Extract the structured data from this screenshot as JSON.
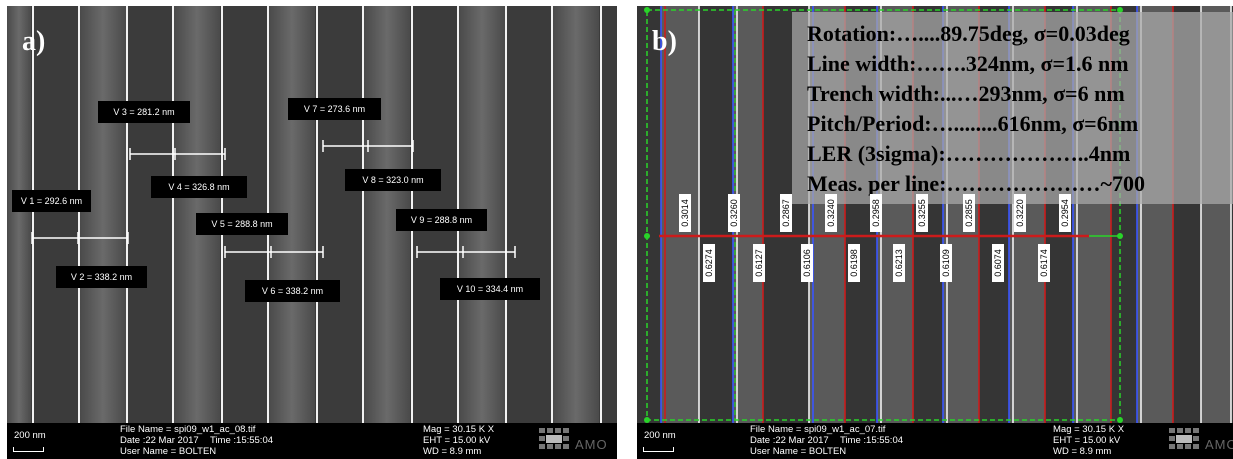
{
  "panel_a": {
    "label": "a)",
    "measurements": [
      "V 1 = 292.6 nm",
      "V 2 = 338.2 nm",
      "V 3 = 281.2 nm",
      "V 4 = 326.8 nm",
      "V 5 = 288.8 nm",
      "V 6 = 338.2 nm",
      "V 7 = 273.6 nm",
      "V 8 = 323.0 nm",
      "V 9 = 288.8 nm",
      "V 10 = 334.4 nm"
    ],
    "databar": {
      "scale": "200 nm",
      "file_name": "File Name = spi09_w1_ac_08.tif",
      "date": "Date :22 Mar 2017",
      "time": "Time :15:55:04",
      "user": "User Name = BOLTEN",
      "mag": "Mag =  30.15 K X",
      "eht": "EHT = 15.00 kV",
      "wd": "WD =  8.9 mm",
      "logo": "AMO"
    }
  },
  "panel_b": {
    "label": "b)",
    "stats": [
      "Rotation:…....89.75deg, σ=0.03deg",
      "Line width:…….324nm, σ=1.6 nm",
      "Trench width:...…293nm, σ=6 nm",
      "Pitch/Period:…........616nm, σ=6nm",
      "LER (3sigma):………………..4nm",
      "Meas. per line:…………………~700"
    ],
    "upper_values": [
      "0.3014",
      "0.3260",
      "0.2867",
      "0.3240",
      "0.2958",
      "0.3255",
      "0.2855",
      "0.3220",
      "0.2954"
    ],
    "lower_values": [
      "0.6274",
      "0.6127",
      "0.6106",
      "0.6198",
      "0.6213",
      "0.6109",
      "0.6074",
      "0.6174"
    ],
    "databar": {
      "scale": "200 nm",
      "file_name": "File Name = spi09_w1_ac_07.tif",
      "date": "Date :22 Mar 2017",
      "time": "Time :15:55:04",
      "user": "User Name = BOLTEN",
      "mag": "Mag =  30.15 K X",
      "eht": "EHT = 15.00 kV",
      "wd": "WD =  8.9 mm",
      "logo": "AMO"
    }
  },
  "colors": {
    "line_edge": "#f2f2f2",
    "overlay_red": "#cc1b1b",
    "overlay_green": "#29d429",
    "overlay_blue": "#3a55ff"
  }
}
